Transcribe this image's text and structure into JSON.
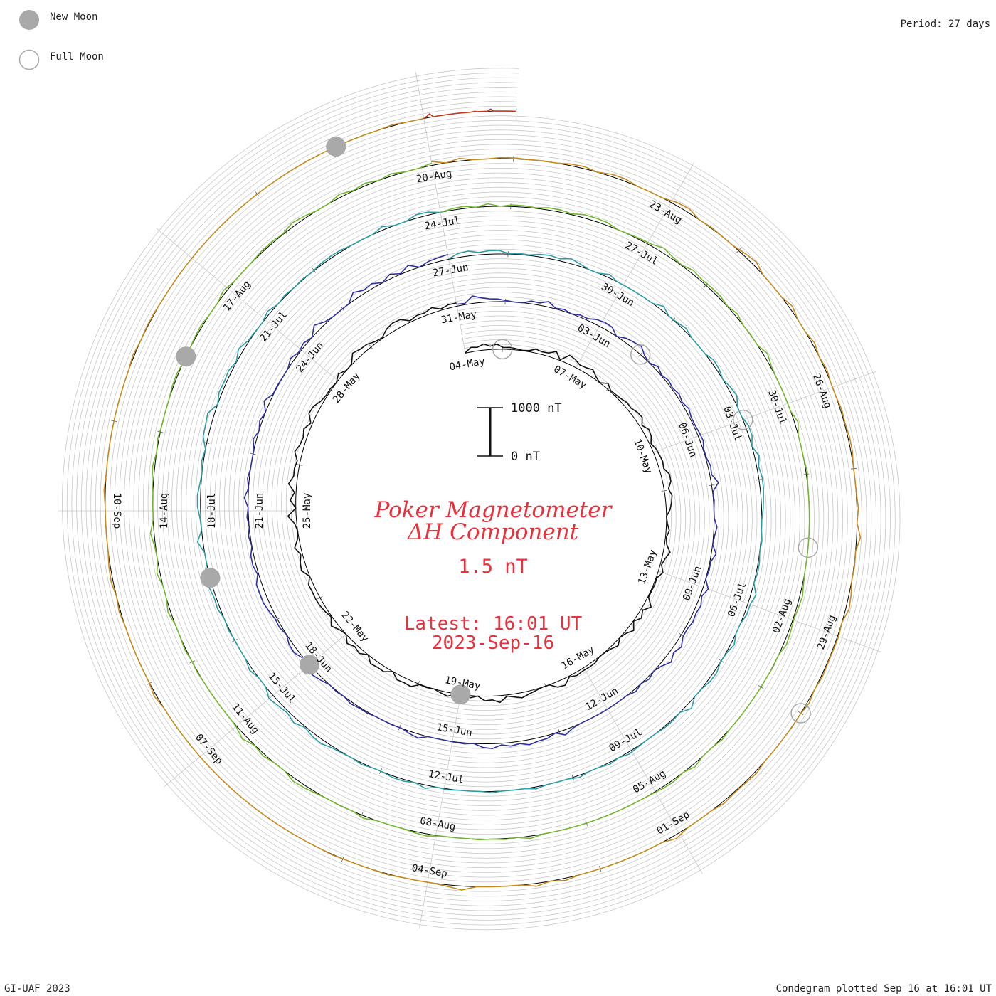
{
  "legend": {
    "new_moon_label": "New Moon",
    "full_moon_label": "Full Moon"
  },
  "period_label": "Period: 27 days",
  "footer": {
    "credit": "GI-UAF 2023",
    "plotted": "Condegram plotted Sep 16 at 16:01 UT"
  },
  "colors": {
    "title": "#e8313c",
    "grid": "#c8c8c8",
    "moon_new": "#a9a9a9",
    "moon_full": "#a9a9a9"
  },
  "chart_data": {
    "type": "spiral condegram (line)",
    "title": "Poker Magnetometer",
    "subtitle": "ΔH Component",
    "value_label": "1.5 nT",
    "latest_line1": "Latest: 16:01 UT",
    "latest_line2": "2023-Sep-16",
    "scale_bar": {
      "top_label": "1000 nT",
      "bottom_label": "0 nT",
      "range": [
        0,
        1000
      ],
      "units": "nT"
    },
    "period_days": 27,
    "x_start": "2023-05-04",
    "x_end": "2023-09-16",
    "date_labels": [
      "04-May",
      "07-May",
      "10-May",
      "13-May",
      "16-May",
      "19-May",
      "22-May",
      "25-May",
      "28-May",
      "31-May",
      "03-Jun",
      "06-Jun",
      "09-Jun",
      "12-Jun",
      "15-Jun",
      "18-Jun",
      "21-Jun",
      "24-Jun",
      "27-Jun",
      "30-Jun",
      "03-Jul",
      "06-Jul",
      "09-Jul",
      "12-Jul",
      "15-Jul",
      "18-Jul",
      "21-Jul",
      "24-Jul",
      "27-Jul",
      "30-Jul",
      "02-Aug",
      "05-Aug",
      "08-Aug",
      "11-Aug",
      "14-Aug",
      "17-Aug",
      "20-Aug",
      "23-Aug",
      "26-Aug",
      "29-Aug",
      "01-Sep",
      "04-Sep",
      "07-Sep",
      "10-Sep"
    ],
    "moon_phases": [
      {
        "phase": "full",
        "date": "2023-05-05"
      },
      {
        "phase": "new",
        "date": "2023-05-19"
      },
      {
        "phase": "full",
        "date": "2023-06-04"
      },
      {
        "phase": "new",
        "date": "2023-06-18"
      },
      {
        "phase": "full",
        "date": "2023-07-03"
      },
      {
        "phase": "new",
        "date": "2023-07-17"
      },
      {
        "phase": "full",
        "date": "2023-08-01"
      },
      {
        "phase": "new",
        "date": "2023-08-16"
      },
      {
        "phase": "full",
        "date": "2023-08-30"
      },
      {
        "phase": "new",
        "date": "2023-09-15"
      }
    ],
    "series": [
      {
        "turn_start": "2023-05-04",
        "color": "#111111",
        "values": [
          7,
          96,
          75,
          127,
          71,
          107,
          36,
          44,
          28,
          8,
          24,
          81,
          56,
          70,
          151,
          14,
          179,
          150,
          89,
          104,
          143,
          56,
          0,
          97,
          21,
          29,
          50,
          86,
          74,
          126,
          147,
          49,
          130,
          104,
          29,
          80,
          99,
          117,
          93,
          178,
          172,
          93,
          147,
          120,
          79,
          0,
          20,
          68,
          20,
          44,
          143,
          72,
          27,
          101,
          16,
          26,
          16,
          16,
          159,
          40,
          105,
          9,
          126,
          40,
          0,
          92,
          39,
          8,
          5,
          53,
          54,
          47,
          66,
          18,
          136,
          112,
          3,
          0,
          27,
          62,
          108,
          64,
          26,
          144,
          80,
          97,
          2,
          46,
          155,
          0,
          81,
          44,
          0,
          19,
          8,
          115,
          98,
          109,
          0,
          99,
          94,
          116,
          0,
          96,
          53,
          118,
          0,
          44,
          130,
          16,
          56,
          84,
          94,
          86,
          94,
          3,
          123,
          94,
          37,
          127,
          34,
          0,
          41,
          172,
          0,
          116,
          31,
          170,
          83,
          90,
          64,
          158,
          92,
          74,
          125,
          34,
          157,
          136,
          57,
          26,
          29,
          0,
          80,
          2,
          13,
          159,
          112,
          99,
          38,
          15,
          117,
          160,
          144,
          29,
          72,
          59,
          112,
          28,
          71,
          71
        ]
      },
      {
        "turn_start": "2023-05-31",
        "color": "#2d2fa4",
        "values": [
          41,
          24,
          157,
          97,
          63,
          55,
          23,
          0,
          0,
          59,
          47,
          115,
          13,
          40,
          0,
          43,
          35,
          100,
          126,
          114,
          0,
          79,
          113,
          143,
          42,
          0,
          75,
          13,
          54,
          24,
          62,
          22,
          75,
          32,
          30,
          50,
          65,
          14,
          15,
          58,
          38,
          150,
          5,
          17,
          0,
          3,
          64,
          24,
          0,
          100,
          18,
          24,
          0,
          111,
          34,
          89,
          60,
          80,
          47,
          52,
          140,
          75,
          155,
          54,
          0,
          49,
          0,
          53,
          0,
          0,
          1,
          2,
          0,
          0,
          0,
          27,
          104,
          0,
          62,
          67,
          106,
          49,
          76,
          35,
          102,
          76,
          0,
          20,
          10,
          0,
          0,
          0,
          82,
          49,
          0,
          10,
          4,
          0,
          22,
          20,
          45,
          0,
          21,
          0,
          55,
          104,
          77,
          18,
          88,
          72,
          0,
          49,
          38,
          80,
          117,
          112,
          113,
          22,
          68,
          61,
          0,
          38,
          0,
          31,
          0,
          81,
          0,
          39,
          0,
          0,
          0,
          70,
          0,
          52,
          0,
          121,
          11,
          12,
          0,
          3,
          78,
          16,
          56,
          0,
          141,
          39,
          0,
          0,
          3,
          145,
          62,
          94,
          5,
          95,
          13,
          117,
          0,
          58,
          83,
          103
        ]
      },
      {
        "turn_start": "2023-06-27",
        "color": "#2a9da6",
        "values": [
          7,
          84,
          103,
          51,
          73,
          75,
          8,
          25,
          13,
          54,
          69,
          43,
          102,
          50,
          0,
          0,
          69,
          0,
          0,
          0,
          0,
          0,
          88,
          3,
          15,
          57,
          5,
          0,
          0,
          66,
          51,
          0,
          56,
          92,
          0,
          0,
          65,
          69,
          0,
          96,
          40,
          73,
          71,
          51,
          34,
          0,
          0,
          23,
          0,
          27,
          31,
          0,
          107,
          52,
          52,
          0,
          0,
          71,
          14,
          0,
          58,
          52,
          7,
          0,
          115,
          0,
          25,
          23,
          0,
          0,
          16,
          44,
          0,
          39,
          0,
          0,
          44,
          0,
          0,
          0,
          42,
          0,
          0,
          0,
          27,
          0,
          0,
          0,
          20,
          0,
          71,
          0,
          37,
          36,
          0,
          0,
          32,
          0,
          14,
          31,
          84,
          69,
          20,
          95,
          39,
          67,
          108,
          0,
          0,
          62,
          0,
          0,
          0,
          20,
          0,
          53,
          40,
          76,
          113,
          5,
          1,
          116,
          0,
          16,
          62,
          65,
          25,
          0,
          36,
          0,
          102,
          113,
          137,
          0,
          61,
          48,
          65,
          10,
          101,
          25,
          10,
          0,
          63,
          0,
          23,
          0,
          17,
          0,
          32,
          40,
          34,
          4,
          6,
          0,
          75,
          0,
          0,
          73,
          60,
          0
        ]
      },
      {
        "turn_start": "2023-07-24",
        "color": "#72b82f",
        "values": [
          0,
          31,
          46,
          0,
          58,
          0,
          34,
          30,
          11,
          48,
          48,
          20,
          68,
          71,
          59,
          0,
          10,
          24,
          34,
          98,
          39,
          12,
          69,
          34,
          43,
          45,
          7,
          56,
          0,
          8,
          0,
          83,
          23,
          0,
          0,
          0,
          0,
          73,
          1,
          0,
          0,
          29,
          3,
          0,
          0,
          0,
          0,
          0,
          0,
          0,
          19,
          57,
          36,
          19,
          44,
          61,
          0,
          9,
          0,
          0,
          0,
          0,
          6,
          0,
          34,
          0,
          0,
          62,
          0,
          37,
          33,
          9,
          0,
          0,
          0,
          0,
          0,
          0,
          0,
          0,
          0,
          50,
          0,
          18,
          0,
          13,
          0,
          0,
          0,
          44,
          26,
          0,
          0,
          0,
          51,
          0,
          8,
          0,
          18,
          52,
          67,
          0,
          0,
          47,
          5,
          91,
          12,
          0,
          0,
          0,
          0,
          14,
          0,
          24,
          0,
          0,
          55,
          0,
          0,
          65,
          0,
          16,
          77,
          0,
          0,
          0,
          33,
          44,
          0,
          27,
          0,
          0,
          0,
          23,
          30,
          0,
          0,
          19,
          31,
          0,
          0,
          60,
          5,
          0,
          6,
          29,
          30,
          11,
          77,
          44,
          0,
          0,
          68,
          12,
          53,
          0,
          47,
          0,
          0,
          48
        ]
      },
      {
        "turn_start": "2023-08-20",
        "color": "#c68a1d",
        "values": [
          81,
          0,
          56,
          0,
          0,
          25,
          21,
          4,
          8,
          0,
          35,
          44,
          0,
          46,
          49,
          0,
          0,
          0,
          60,
          78,
          0,
          15,
          4,
          0,
          48,
          84,
          0,
          0,
          0,
          66,
          0,
          0,
          51,
          0,
          33,
          0,
          0,
          28,
          13,
          36,
          33,
          0,
          0,
          5,
          31,
          0,
          80,
          0,
          14,
          0,
          44,
          70,
          0,
          25,
          15,
          15,
          27,
          0,
          40,
          0,
          8,
          0,
          0,
          0,
          42,
          20,
          16,
          41,
          0,
          0,
          5,
          75,
          0,
          0,
          0,
          0,
          0,
          0,
          0,
          48,
          0,
          61,
          0,
          0,
          0,
          0,
          83,
          31,
          0,
          0,
          0,
          17,
          7,
          0,
          0,
          13,
          0,
          0,
          0,
          0,
          0,
          0,
          0,
          0,
          0,
          0,
          0,
          0,
          0,
          0,
          0,
          47,
          0,
          0,
          0,
          0,
          0,
          31,
          0,
          42,
          30,
          0,
          0,
          0,
          0,
          26,
          2,
          0,
          0,
          0,
          0,
          0,
          0,
          0,
          30,
          0,
          14,
          11,
          0,
          0,
          0,
          0,
          0,
          0,
          0,
          0,
          0,
          0,
          0,
          0,
          0,
          0,
          0,
          0,
          0,
          0,
          0,
          25,
          0,
          0
        ]
      },
      {
        "turn_start": "2023-09-16",
        "color": "#c33a20",
        "values": [
          0,
          30,
          73,
          0,
          0,
          0,
          0,
          0,
          0,
          0,
          0,
          0,
          0,
          0,
          0,
          0,
          13,
          0,
          0,
          0,
          0,
          43,
          0,
          0,
          0,
          0,
          0,
          0,
          0,
          0
        ]
      }
    ]
  }
}
